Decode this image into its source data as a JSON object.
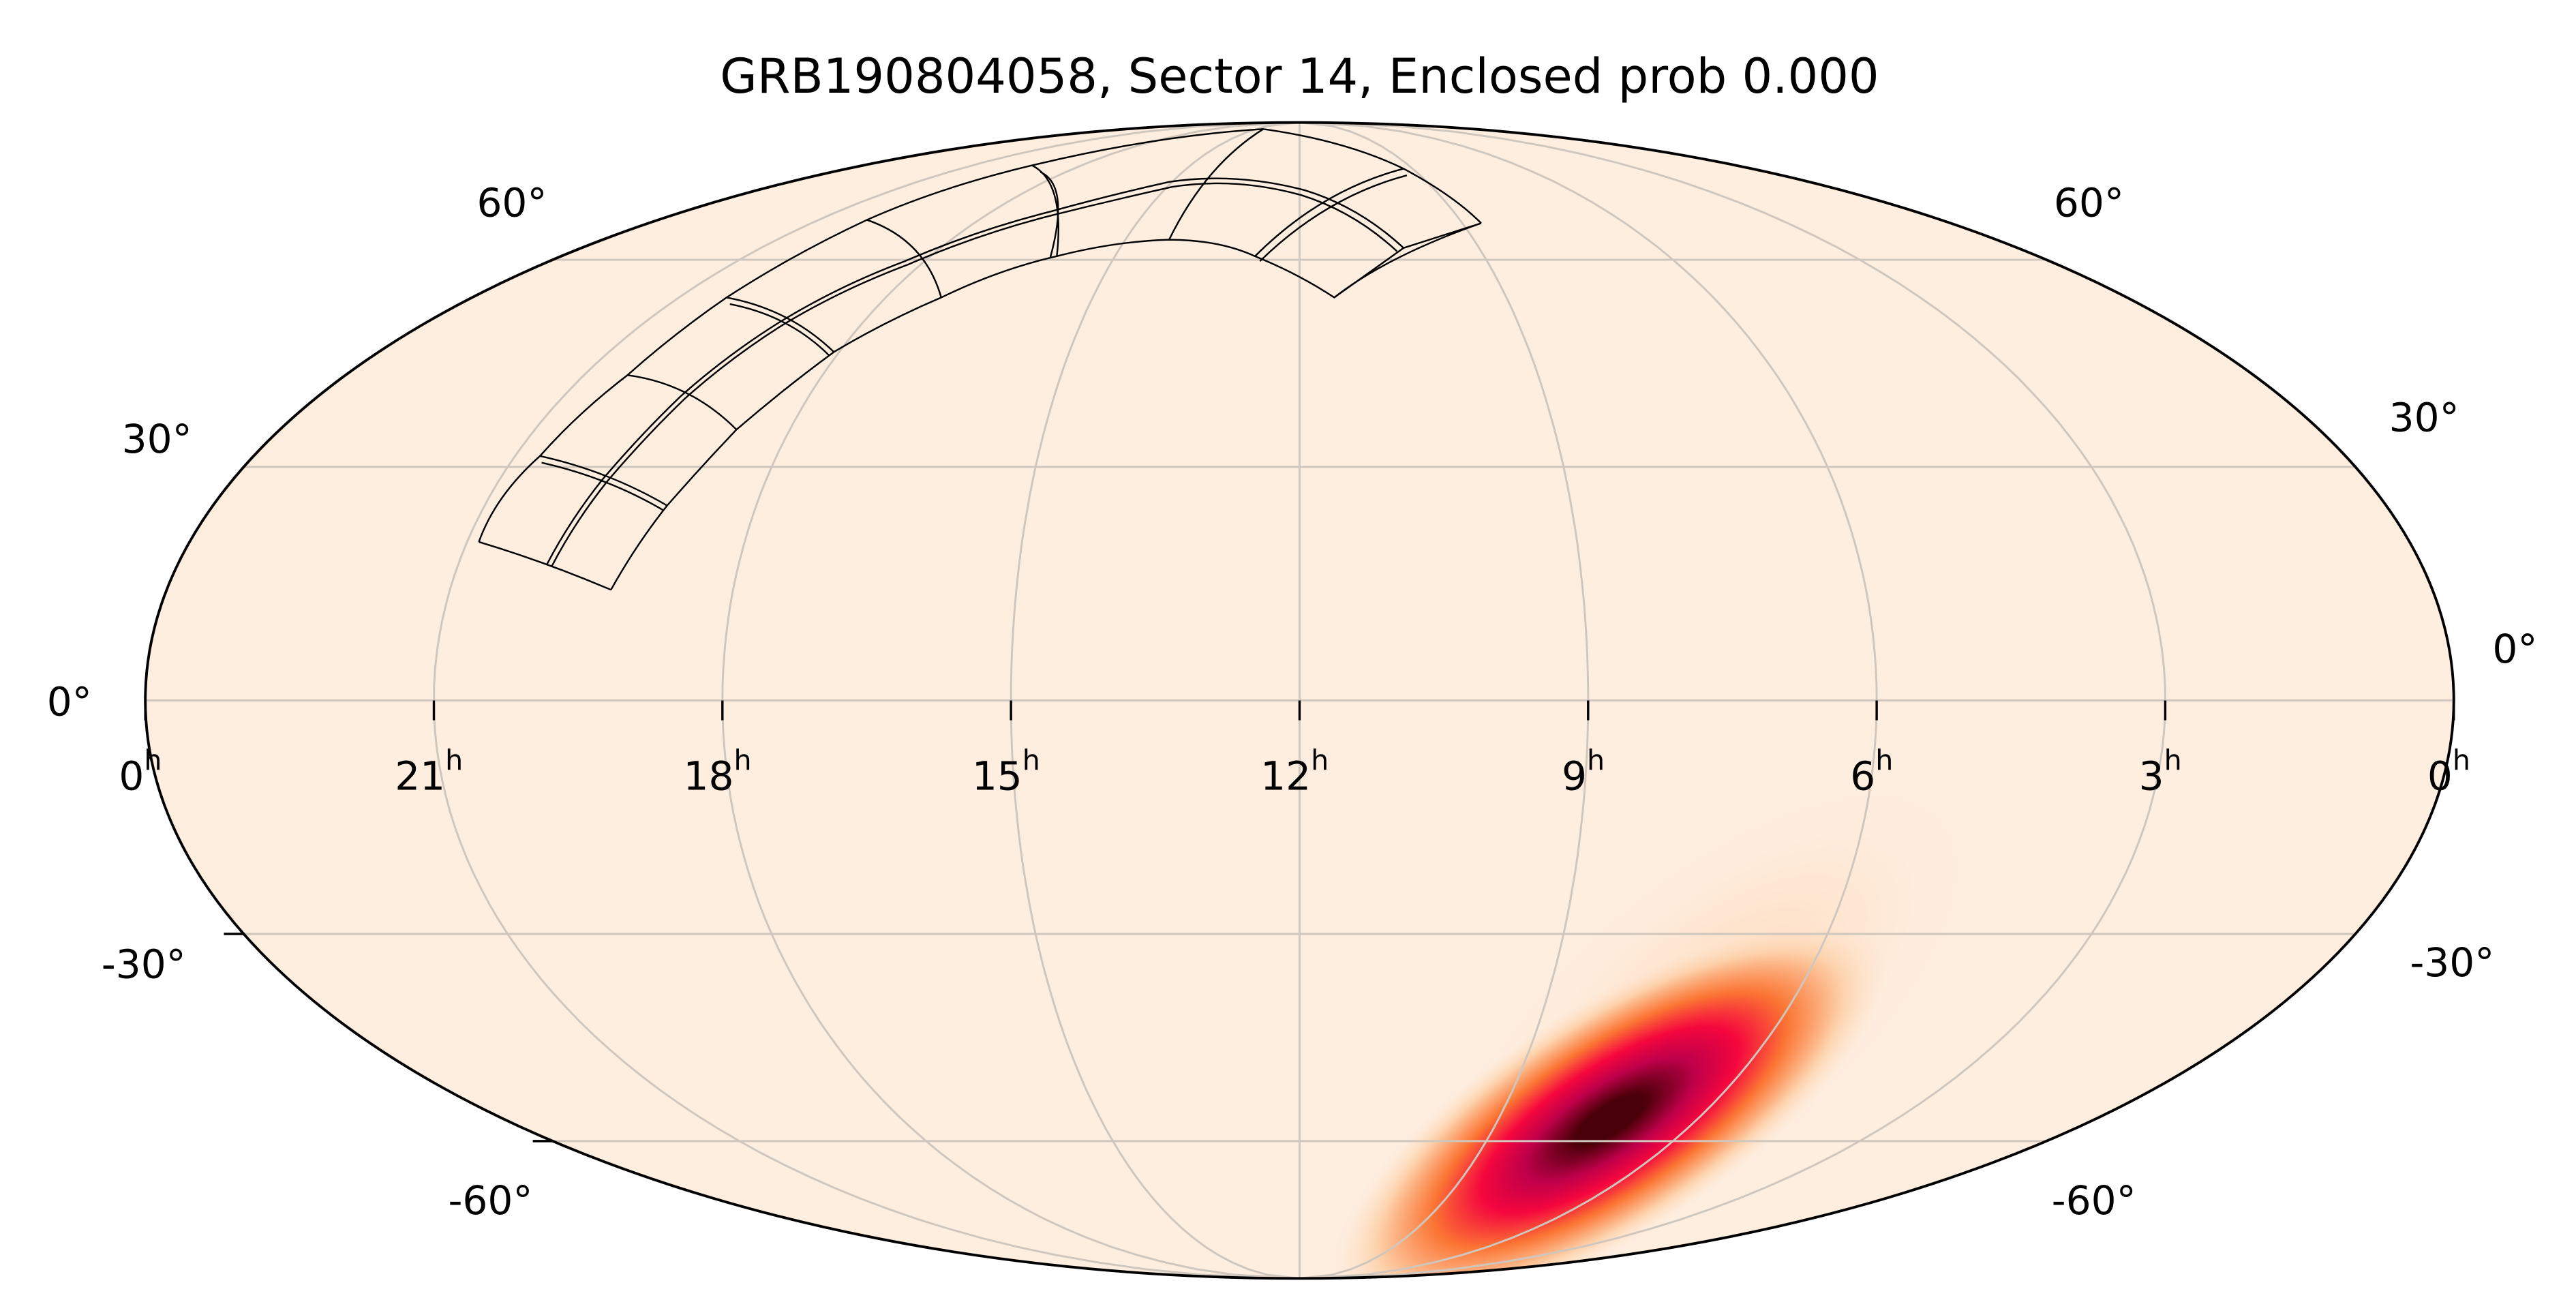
{
  "chart_data": {
    "type": "heatmap",
    "projection": "mollweide",
    "title": "GRB190804058, Sector 14, Enclosed prob 0.000",
    "x_axis": {
      "quantity": "right ascension",
      "direction": "increasing to the left",
      "tick_values_hours": [
        24,
        21,
        18,
        15,
        12,
        9,
        6,
        3,
        0
      ],
      "tick_labels": [
        "0",
        "21",
        "18",
        "15",
        "12",
        "9",
        "6",
        "3",
        "0"
      ],
      "tick_suffix": "h"
    },
    "y_axis": {
      "quantity": "declination",
      "tick_values_deg": [
        -60,
        -30,
        0,
        30,
        60
      ],
      "tick_labels": [
        "-60°",
        "-30°",
        "0°",
        "30°",
        "60°"
      ]
    },
    "grid": true,
    "colormap": "white-orange-red-black (probability density)",
    "colors": {
      "background": "#feeee0",
      "grid": "#cfc6bd",
      "footprint_outline": "#000000",
      "peak": "#4a0008",
      "high": "#c0004a",
      "mid": "#f5063e",
      "low": "#fb7433",
      "faint": "#fdd2ac"
    },
    "probability_region": {
      "peak_ra_hours": 8.4,
      "peak_dec_deg": -57,
      "extent": "elongated from about RA 11.5h Dec -80° to RA 6h Dec -25°"
    },
    "footprint": {
      "label": "Sector 14",
      "cameras": 4,
      "ccds_per_camera": 4,
      "enclosed_probability": 0.0
    }
  }
}
